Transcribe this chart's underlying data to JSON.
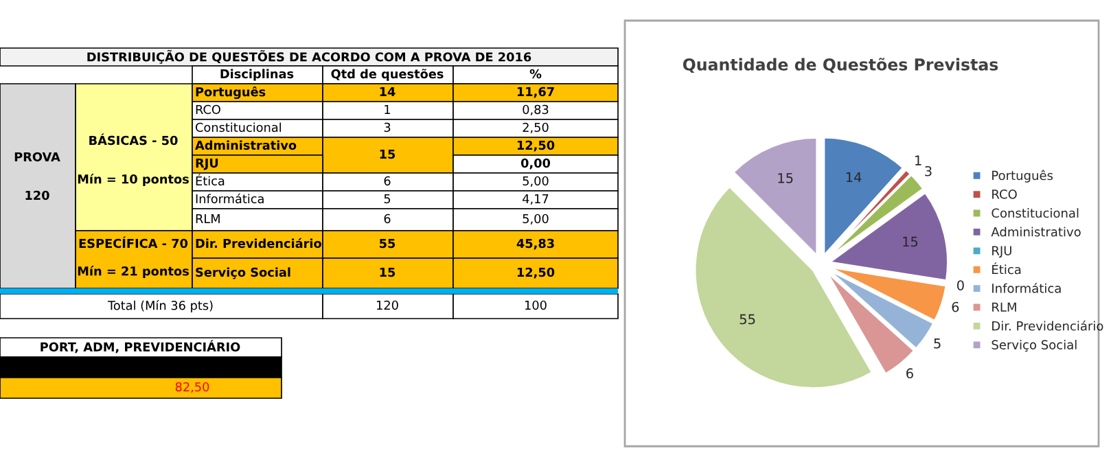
{
  "chart_data": [
    {
      "type": "other",
      "annotations": [
        "DISTRIBUIÇÃO DE QUESTÕES DE ACORDO COM A PROVA DE 2016",
        "Disciplinas",
        "Qtd de questões",
        "%",
        "PROVA",
        "120",
        "BÁSICAS - 50",
        "Mín = 10 pontos",
        "Português",
        "14",
        "11,67",
        "RCO",
        "1",
        "0,83",
        "Constitucional",
        "3",
        "2,50",
        "Administrativo",
        "15",
        "12,50",
        "RJU",
        "0,00",
        "Ética",
        "6",
        "5,00",
        "Informática",
        "5",
        "4,17",
        "RLM",
        "6",
        "5,00",
        "ESPECÍFICA - 70",
        "Mín = 21 pontos",
        "Dir. Previdenciário",
        "55",
        "45,83",
        "Serviço Social",
        "15",
        "12,50",
        "Total (Mín 36 pts)",
        "120",
        "100",
        "PORT, ADM, PREVIDENCIÁRIO",
        "82,50"
      ]
    },
    {
      "type": "pie",
      "title": "Quantidade de Questões Previstas",
      "categories": [
        "Português",
        "RCO",
        "Constitucional",
        "Administrativo",
        "RJU",
        "Ética",
        "Informática",
        "RLM",
        "Dir. Previdenciário",
        "Serviço Social"
      ],
      "values": [
        14,
        1,
        3,
        15,
        0,
        6,
        5,
        6,
        55,
        15
      ],
      "colors": [
        "#4f81bd",
        "#c0504d",
        "#9bbb59",
        "#8064a2",
        "#4bacc6",
        "#f79646",
        "#95b3d7",
        "#d99694",
        "#c3d69b",
        "#b3a2c7"
      ],
      "value_labels": [
        "14",
        "1",
        "3",
        "15",
        "0",
        "6",
        "5",
        "6",
        "55",
        "15"
      ],
      "legend": "right"
    }
  ]
}
